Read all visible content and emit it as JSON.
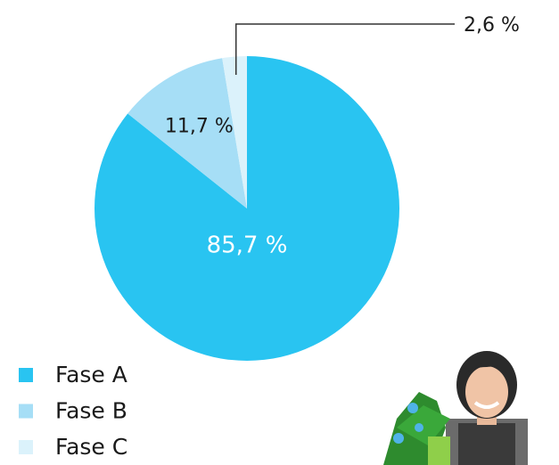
{
  "chart_data": {
    "type": "pie",
    "categories": [
      "Fase A",
      "Fase B",
      "Fase C"
    ],
    "values": [
      85.7,
      11.7,
      2.6
    ],
    "value_labels": [
      "85,7 %",
      "11,7 %",
      "2,6 %"
    ],
    "colors": [
      "#29c4f1",
      "#a6def6",
      "#dbf2fb"
    ],
    "legend": "bottom-left"
  }
}
